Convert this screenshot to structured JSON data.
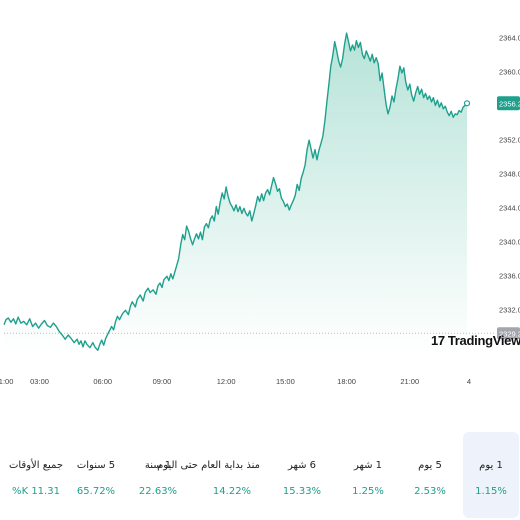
{
  "chart_data": {
    "type": "area",
    "series": [
      {
        "values": [
          [
            0.0,
            2330.2
          ],
          [
            0.1,
            2330.8
          ],
          [
            0.22,
            2331.0
          ],
          [
            0.35,
            2330.5
          ],
          [
            0.48,
            2330.9
          ],
          [
            0.6,
            2330.3
          ],
          [
            0.72,
            2331.1
          ],
          [
            0.85,
            2330.4
          ],
          [
            1.0,
            2330.6
          ],
          [
            1.15,
            2330.2
          ],
          [
            1.3,
            2330.9
          ],
          [
            1.45,
            2330.0
          ],
          [
            1.6,
            2330.4
          ],
          [
            1.75,
            2329.8
          ],
          [
            1.9,
            2330.3
          ],
          [
            2.05,
            2330.7
          ],
          [
            2.2,
            2330.1
          ],
          [
            2.35,
            2329.9
          ],
          [
            2.5,
            2330.4
          ],
          [
            2.65,
            2330.0
          ],
          [
            2.8,
            2329.4
          ],
          [
            2.95,
            2329.0
          ],
          [
            3.1,
            2328.5
          ],
          [
            3.25,
            2329.0
          ],
          [
            3.4,
            2328.6
          ],
          [
            3.55,
            2328.1
          ],
          [
            3.7,
            2328.5
          ],
          [
            3.8,
            2327.9
          ],
          [
            3.9,
            2328.3
          ],
          [
            4.0,
            2327.6
          ],
          [
            4.1,
            2328.3
          ],
          [
            4.2,
            2327.9
          ],
          [
            4.35,
            2327.5
          ],
          [
            4.5,
            2328.1
          ],
          [
            4.6,
            2327.6
          ],
          [
            4.75,
            2327.2
          ],
          [
            4.85,
            2327.9
          ],
          [
            4.95,
            2328.4
          ],
          [
            5.05,
            2327.8
          ],
          [
            5.15,
            2328.6
          ],
          [
            5.3,
            2329.3
          ],
          [
            5.45,
            2330.0
          ],
          [
            5.55,
            2329.6
          ],
          [
            5.65,
            2330.6
          ],
          [
            5.75,
            2331.2
          ],
          [
            5.85,
            2330.8
          ],
          [
            6.0,
            2331.5
          ],
          [
            6.15,
            2331.9
          ],
          [
            6.3,
            2331.4
          ],
          [
            6.4,
            2332.4
          ],
          [
            6.5,
            2332.9
          ],
          [
            6.65,
            2332.3
          ],
          [
            6.75,
            2333.2
          ],
          [
            6.9,
            2333.7
          ],
          [
            7.05,
            2333.0
          ],
          [
            7.15,
            2334.0
          ],
          [
            7.3,
            2334.5
          ],
          [
            7.4,
            2334.0
          ],
          [
            7.55,
            2334.3
          ],
          [
            7.7,
            2333.8
          ],
          [
            7.8,
            2334.8
          ],
          [
            7.9,
            2335.1
          ],
          [
            8.0,
            2334.6
          ],
          [
            8.1,
            2335.5
          ],
          [
            8.25,
            2335.9
          ],
          [
            8.35,
            2335.4
          ],
          [
            8.45,
            2336.2
          ],
          [
            8.55,
            2335.6
          ],
          [
            8.65,
            2336.4
          ],
          [
            8.75,
            2337.2
          ],
          [
            8.85,
            2338.0
          ],
          [
            8.95,
            2339.6
          ],
          [
            9.05,
            2340.8
          ],
          [
            9.15,
            2340.2
          ],
          [
            9.25,
            2341.8
          ],
          [
            9.35,
            2341.2
          ],
          [
            9.45,
            2340.3
          ],
          [
            9.55,
            2339.6
          ],
          [
            9.65,
            2340.3
          ],
          [
            9.75,
            2340.9
          ],
          [
            9.85,
            2340.3
          ],
          [
            9.95,
            2341.1
          ],
          [
            10.05,
            2340.2
          ],
          [
            10.15,
            2341.7
          ],
          [
            10.25,
            2342.1
          ],
          [
            10.35,
            2341.6
          ],
          [
            10.45,
            2342.6
          ],
          [
            10.55,
            2343.0
          ],
          [
            10.65,
            2342.4
          ],
          [
            10.75,
            2344.1
          ],
          [
            10.85,
            2343.2
          ],
          [
            10.95,
            2344.6
          ],
          [
            11.05,
            2345.7
          ],
          [
            11.15,
            2345.0
          ],
          [
            11.25,
            2346.4
          ],
          [
            11.35,
            2345.3
          ],
          [
            11.45,
            2344.5
          ],
          [
            11.55,
            2344.1
          ],
          [
            11.65,
            2343.6
          ],
          [
            11.75,
            2344.3
          ],
          [
            11.85,
            2343.5
          ],
          [
            11.95,
            2344.1
          ],
          [
            12.05,
            2343.3
          ],
          [
            12.15,
            2343.9
          ],
          [
            12.25,
            2343.3
          ],
          [
            12.35,
            2343.0
          ],
          [
            12.45,
            2343.6
          ],
          [
            12.55,
            2342.4
          ],
          [
            12.65,
            2343.3
          ],
          [
            12.75,
            2344.2
          ],
          [
            12.85,
            2345.3
          ],
          [
            12.95,
            2344.7
          ],
          [
            13.05,
            2345.6
          ],
          [
            13.15,
            2344.8
          ],
          [
            13.25,
            2345.7
          ],
          [
            13.35,
            2346.1
          ],
          [
            13.45,
            2345.5
          ],
          [
            13.55,
            2346.5
          ],
          [
            13.65,
            2347.5
          ],
          [
            13.75,
            2346.8
          ],
          [
            13.85,
            2345.9
          ],
          [
            13.95,
            2346.2
          ],
          [
            14.05,
            2345.1
          ],
          [
            14.15,
            2344.7
          ],
          [
            14.25,
            2344.1
          ],
          [
            14.35,
            2344.4
          ],
          [
            14.45,
            2343.7
          ],
          [
            14.55,
            2344.3
          ],
          [
            14.65,
            2344.8
          ],
          [
            14.75,
            2345.4
          ],
          [
            14.85,
            2346.7
          ],
          [
            14.95,
            2346.0
          ],
          [
            15.05,
            2347.4
          ],
          [
            15.15,
            2348.1
          ],
          [
            15.25,
            2349.0
          ],
          [
            15.35,
            2350.8
          ],
          [
            15.45,
            2351.9
          ],
          [
            15.55,
            2350.9
          ],
          [
            15.65,
            2349.8
          ],
          [
            15.75,
            2350.8
          ],
          [
            15.85,
            2349.6
          ],
          [
            15.95,
            2350.7
          ],
          [
            16.05,
            2351.5
          ],
          [
            16.15,
            2352.4
          ],
          [
            16.25,
            2354.2
          ],
          [
            16.35,
            2356.3
          ],
          [
            16.45,
            2358.4
          ],
          [
            16.55,
            2360.6
          ],
          [
            16.65,
            2361.8
          ],
          [
            16.75,
            2363.5
          ],
          [
            16.85,
            2362.4
          ],
          [
            16.95,
            2361.2
          ],
          [
            17.05,
            2360.5
          ],
          [
            17.15,
            2361.5
          ],
          [
            17.25,
            2363.2
          ],
          [
            17.35,
            2364.5
          ],
          [
            17.45,
            2363.5
          ],
          [
            17.55,
            2362.4
          ],
          [
            17.65,
            2363.1
          ],
          [
            17.75,
            2362.5
          ],
          [
            17.85,
            2363.6
          ],
          [
            17.95,
            2362.8
          ],
          [
            18.05,
            2363.4
          ],
          [
            18.15,
            2362.0
          ],
          [
            18.25,
            2361.5
          ],
          [
            18.35,
            2362.4
          ],
          [
            18.45,
            2361.8
          ],
          [
            18.55,
            2361.2
          ],
          [
            18.65,
            2362.0
          ],
          [
            18.75,
            2361.0
          ],
          [
            18.85,
            2361.6
          ],
          [
            18.95,
            2360.9
          ],
          [
            19.05,
            2358.9
          ],
          [
            19.15,
            2359.8
          ],
          [
            19.25,
            2357.9
          ],
          [
            19.35,
            2356.1
          ],
          [
            19.45,
            2355.0
          ],
          [
            19.55,
            2355.8
          ],
          [
            19.65,
            2357.1
          ],
          [
            19.75,
            2356.4
          ],
          [
            19.85,
            2357.9
          ],
          [
            19.95,
            2359.1
          ],
          [
            20.05,
            2360.6
          ],
          [
            20.15,
            2359.8
          ],
          [
            20.25,
            2360.4
          ],
          [
            20.35,
            2358.7
          ],
          [
            20.45,
            2357.8
          ],
          [
            20.55,
            2358.5
          ],
          [
            20.65,
            2357.2
          ],
          [
            20.75,
            2356.5
          ],
          [
            20.85,
            2357.5
          ],
          [
            20.95,
            2358.2
          ],
          [
            21.05,
            2357.3
          ],
          [
            21.15,
            2357.9
          ],
          [
            21.25,
            2356.9
          ],
          [
            21.35,
            2357.4
          ],
          [
            21.45,
            2356.7
          ],
          [
            21.55,
            2357.1
          ],
          [
            21.65,
            2356.4
          ],
          [
            21.75,
            2356.9
          ],
          [
            21.85,
            2356.0
          ],
          [
            21.95,
            2356.6
          ],
          [
            22.05,
            2355.8
          ],
          [
            22.15,
            2356.3
          ],
          [
            22.25,
            2355.6
          ],
          [
            22.35,
            2355.9
          ],
          [
            22.45,
            2355.2
          ],
          [
            22.55,
            2354.8
          ],
          [
            22.65,
            2355.3
          ],
          [
            22.75,
            2354.6
          ],
          [
            22.85,
            2355.0
          ],
          [
            22.95,
            2354.9
          ],
          [
            23.05,
            2355.4
          ],
          [
            23.15,
            2355.2
          ],
          [
            23.25,
            2355.8
          ],
          [
            23.35,
            2356.0
          ],
          [
            23.45,
            2356.24
          ]
        ]
      }
    ],
    "xlim": [
      0,
      23.5
    ],
    "ylim": [
      2327.0,
      2365.8
    ],
    "x_ticks": [
      {
        "x": 0.0,
        "label": "01:00"
      },
      {
        "x": 1.8,
        "label": "03:00"
      },
      {
        "x": 5.0,
        "label": "06:00"
      },
      {
        "x": 8.0,
        "label": "09:00"
      },
      {
        "x": 11.25,
        "label": "12:00"
      },
      {
        "x": 14.25,
        "label": "15:00"
      },
      {
        "x": 17.35,
        "label": "18:00"
      },
      {
        "x": 20.55,
        "label": "21:00"
      },
      {
        "x": 23.55,
        "label": "4"
      }
    ],
    "y_ticks": [
      2332,
      2336,
      2340,
      2344,
      2348,
      2352,
      2360,
      2364
    ],
    "y_tick_labels": [
      "2332.00",
      "2336.00",
      "2340.00",
      "2344.00",
      "2348.00",
      "2352.00",
      "2360.00",
      "2364.00"
    ],
    "last_value": 2356.24,
    "last_value_label": "2356.24",
    "prev_close": 2329.2,
    "prev_close_label": "2329.20",
    "colors": {
      "line": "#1fa08c",
      "fill_top": "#b6e3d8",
      "fill_bottom": "#ffffff",
      "prev_close_line": "#b9bcc4",
      "badge_bg": "#1fa08c",
      "prev_badge_bg": "#a3a6ad"
    }
  },
  "watermark": "TradingView",
  "periods": [
    {
      "label": "1 يوم",
      "value": "1.15%",
      "active": true
    },
    {
      "label": "5 يوم",
      "value": "2.53%"
    },
    {
      "label": "1 شهر",
      "value": "1.25%"
    },
    {
      "label": "6 شهر",
      "value": "15.33%"
    },
    {
      "label": "منذ بداية العام حتى اليوم",
      "value": "14.22%"
    },
    {
      "label": "1 سنة",
      "value": "22.63%"
    },
    {
      "label": "5 سنوات",
      "value": "65.72%"
    },
    {
      "label": "جميع الأوقات",
      "value": "11.31 K%"
    }
  ],
  "value_color": "#1fa08c"
}
